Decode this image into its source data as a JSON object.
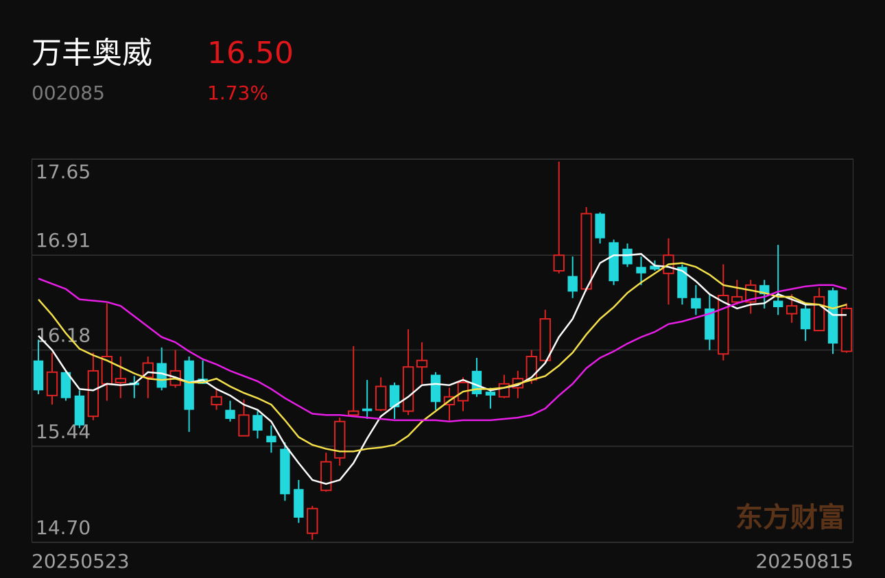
{
  "header": {
    "name": "万丰奥威",
    "code": "002085",
    "price": "16.50",
    "change": "1.73%"
  },
  "chart_data": {
    "type": "candlestick",
    "watermark": "东方财富",
    "categories": [
      "20250523",
      null,
      null,
      null,
      null,
      null,
      null,
      null,
      null,
      null,
      null,
      null,
      null,
      null,
      null,
      null,
      null,
      null,
      null,
      null,
      null,
      null,
      null,
      null,
      null,
      null,
      null,
      null,
      null,
      null,
      null,
      null,
      null,
      null,
      null,
      null,
      null,
      null,
      null,
      null,
      null,
      null,
      null,
      null,
      null,
      null,
      null,
      null,
      null,
      null,
      null,
      null,
      null,
      null,
      null,
      null,
      null,
      null,
      null,
      "20250815"
    ],
    "open": [
      16.1,
      15.83,
      16.01,
      15.83,
      15.67,
      15.92,
      15.93,
      15.93,
      15.97,
      16.08,
      15.91,
      16.1,
      15.96,
      15.76,
      15.72,
      15.52,
      15.68,
      15.52,
      15.42,
      15.11,
      14.77,
      15.1,
      15.35,
      15.68,
      15.73,
      15.72,
      15.91,
      15.71,
      16.05,
      15.99,
      15.76,
      15.79,
      16.02,
      15.86,
      15.82,
      15.89,
      15.95,
      16.1,
      16.79,
      16.75,
      16.65,
      17.23,
      17.01,
      16.96,
      16.82,
      16.83,
      16.77,
      16.82,
      16.58,
      16.5,
      16.15,
      16.55,
      16.55,
      16.68,
      16.56,
      16.46,
      16.5,
      16.33,
      16.64,
      16.17
    ],
    "high": [
      16.26,
      16.16,
      16.02,
      15.87,
      16.16,
      16.54,
      16.13,
      15.98,
      16.13,
      16.2,
      16.18,
      16.13,
      16.1,
      15.89,
      15.79,
      15.8,
      15.71,
      15.6,
      15.47,
      15.18,
      14.98,
      15.39,
      15.66,
      16.21,
      15.95,
      15.97,
      15.93,
      16.34,
      16.24,
      16.01,
      15.89,
      15.97,
      16.12,
      15.89,
      15.99,
      16.02,
      16.18,
      16.49,
      17.63,
      16.9,
      17.28,
      17.24,
      17.03,
      17.0,
      16.9,
      16.87,
      17.04,
      16.84,
      16.68,
      16.61,
      16.84,
      16.72,
      16.72,
      16.72,
      16.99,
      16.61,
      16.53,
      16.66,
      16.66,
      16.54
    ],
    "low": [
      15.84,
      15.76,
      15.79,
      15.58,
      15.64,
      15.79,
      15.81,
      15.81,
      15.81,
      15.87,
      15.89,
      15.55,
      15.92,
      15.72,
      15.63,
      15.52,
      15.5,
      15.39,
      15.02,
      14.85,
      14.72,
      15.09,
      15.29,
      15.68,
      15.65,
      15.71,
      15.65,
      15.68,
      15.92,
      15.72,
      15.64,
      15.71,
      15.82,
      15.73,
      15.81,
      15.81,
      15.92,
      16.08,
      16.77,
      16.58,
      16.63,
      17.0,
      16.68,
      16.82,
      16.68,
      16.79,
      16.53,
      16.53,
      16.45,
      16.18,
      16.1,
      16.53,
      16.46,
      16.5,
      16.45,
      16.39,
      16.25,
      16.33,
      16.15,
      16.16
    ],
    "close": [
      15.87,
      16.01,
      15.81,
      15.6,
      16.02,
      16.13,
      15.96,
      15.91,
      16.08,
      15.89,
      16.02,
      15.72,
      15.92,
      15.82,
      15.65,
      15.68,
      15.56,
      15.47,
      15.07,
      14.89,
      14.96,
      15.32,
      15.63,
      15.71,
      15.71,
      15.9,
      15.74,
      16.05,
      16.1,
      15.78,
      15.82,
      15.93,
      15.84,
      15.83,
      15.92,
      15.96,
      16.13,
      16.42,
      16.91,
      16.63,
      17.23,
      17.04,
      16.71,
      16.84,
      16.77,
      16.8,
      16.91,
      16.58,
      16.5,
      16.26,
      16.6,
      16.59,
      16.68,
      16.61,
      16.51,
      16.52,
      16.34,
      16.59,
      16.23,
      16.5
    ],
    "up_color": "#e02424",
    "down_color": "#22d8dc",
    "lines": [
      {
        "color": "#ffffff",
        "values": [
          16.29,
          16.18,
          16.02,
          15.88,
          15.87,
          15.92,
          15.91,
          15.92,
          16.01,
          16.0,
          15.97,
          15.93,
          15.95,
          15.88,
          15.83,
          15.76,
          15.72,
          15.63,
          15.45,
          15.31,
          15.18,
          15.15,
          15.18,
          15.31,
          15.5,
          15.67,
          15.75,
          15.82,
          15.91,
          15.92,
          15.91,
          15.95,
          15.91,
          15.87,
          15.89,
          15.91,
          15.97,
          16.08,
          16.28,
          16.42,
          16.65,
          16.85,
          16.91,
          16.91,
          16.92,
          16.83,
          16.82,
          16.79,
          16.71,
          16.61,
          16.55,
          16.5,
          16.53,
          16.54,
          16.61,
          16.57,
          16.53,
          16.53,
          16.45,
          16.45
        ]
      },
      {
        "color": "#f5e04a",
        "values": [
          16.57,
          16.45,
          16.31,
          16.19,
          16.14,
          16.1,
          16.05,
          16.0,
          15.96,
          15.95,
          15.96,
          15.93,
          15.93,
          15.96,
          15.9,
          15.85,
          15.81,
          15.76,
          15.64,
          15.51,
          15.45,
          15.42,
          15.4,
          15.4,
          15.42,
          15.43,
          15.45,
          15.52,
          15.63,
          15.71,
          15.79,
          15.86,
          15.88,
          15.88,
          15.89,
          15.92,
          15.95,
          15.98,
          16.06,
          16.16,
          16.3,
          16.42,
          16.51,
          16.62,
          16.7,
          16.77,
          16.84,
          16.85,
          16.82,
          16.76,
          16.68,
          16.66,
          16.64,
          16.62,
          16.59,
          16.59,
          16.54,
          16.53,
          16.5,
          16.53
        ]
      },
      {
        "color": "#e81ee8",
        "values": [
          16.73,
          16.69,
          16.65,
          16.57,
          16.56,
          16.55,
          16.52,
          16.44,
          16.36,
          16.28,
          16.24,
          16.17,
          16.11,
          16.07,
          16.02,
          15.98,
          15.94,
          15.88,
          15.81,
          15.75,
          15.69,
          15.68,
          15.68,
          15.67,
          15.66,
          15.65,
          15.64,
          15.64,
          15.64,
          15.64,
          15.63,
          15.64,
          15.64,
          15.64,
          15.65,
          15.66,
          15.68,
          15.73,
          15.83,
          15.92,
          16.04,
          16.12,
          16.17,
          16.23,
          16.28,
          16.32,
          16.38,
          16.4,
          16.43,
          16.46,
          16.5,
          16.54,
          16.57,
          16.59,
          16.63,
          16.65,
          16.67,
          16.68,
          16.68,
          16.65
        ]
      }
    ],
    "ylim": [
      14.7,
      17.65
    ],
    "yticks": [
      {
        "value": 14.7,
        "label": "14.70"
      },
      15.44,
      16.18,
      16.91,
      17.65
    ],
    "grid": true
  }
}
